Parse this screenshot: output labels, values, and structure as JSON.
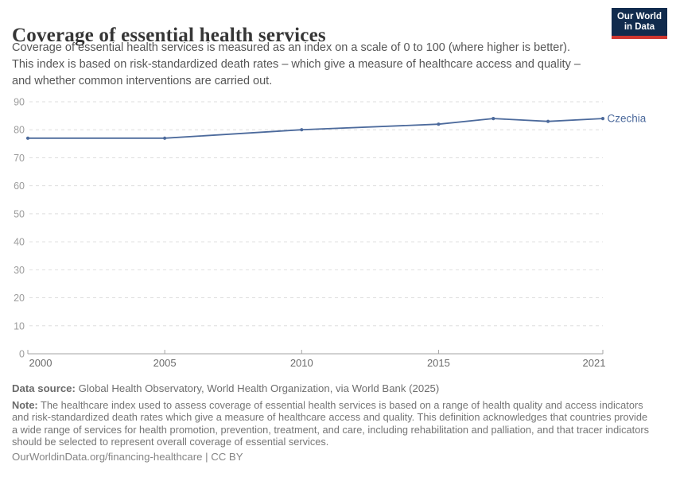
{
  "header": {
    "title": "Coverage of essential health services",
    "subtitle_lines": [
      "Coverage of essential health services is measured as an index on a scale of 0 to 100 (where higher is better).",
      "This index is based on risk-standardized death rates – which give a measure of healthcare access and quality –",
      "and whether common interventions are carried out."
    ],
    "logo": {
      "line1": "Our World",
      "line2": "in Data"
    }
  },
  "chart_data": {
    "type": "line",
    "title": "Coverage of essential health services",
    "series": [
      {
        "name": "Czechia",
        "color": "#4c6a9c",
        "x": [
          2000,
          2005,
          2010,
          2015,
          2017,
          2019,
          2021
        ],
        "values": [
          77,
          77,
          80,
          82,
          84,
          83,
          84
        ]
      }
    ],
    "xlabel": "",
    "ylabel": "",
    "xlim": [
      2000,
      2021
    ],
    "ylim": [
      0,
      90
    ],
    "yticks": [
      0,
      10,
      20,
      30,
      40,
      50,
      60,
      70,
      80,
      90
    ],
    "xticks": [
      2000,
      2005,
      2010,
      2015,
      2021
    ],
    "grid": "horizontal dashed",
    "legend_position": "end-of-line label",
    "colors": {
      "gridline": "#dedede",
      "axis": "#a3a3a3",
      "y_tick_label": "#9c9c9c",
      "x_tick_label": "#6b6b6b"
    }
  },
  "footer": {
    "data_source_label": "Data source:",
    "data_source": "Global Health Observatory, World Health Organization, via World Bank (2025)",
    "note_label": "Note:",
    "note_lines": [
      "The healthcare index used to assess coverage of essential health services is based on a range of health quality and access indicators",
      "and risk-standardized death rates which give a measure of healthcare access and quality. This definition acknowledges that countries provide",
      "a wide range of services for health promotion, prevention, treatment, and care, including rehabilitation and palliation, and that tracer indicators",
      "should be selected to represent overall coverage of essential services."
    ],
    "attribution": "OurWorldinData.org/financing-healthcare | CC BY"
  }
}
